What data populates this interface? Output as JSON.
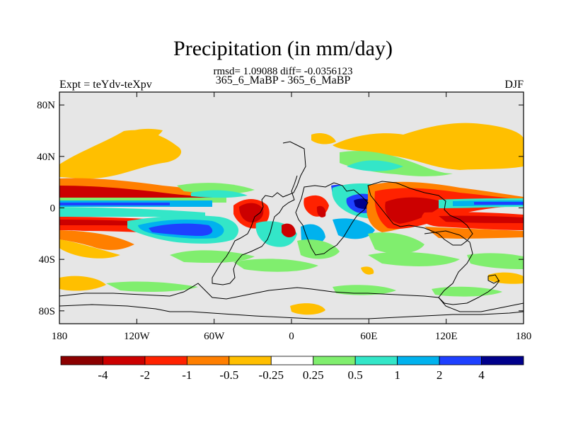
{
  "title": "Precipitation (in mm/day)",
  "stats_line": "rmsd= 1.09088 diff= -0.0356123",
  "subtitle": "365_6_MaBP - 365_6_MaBP",
  "left_label": "Expt = teYdv-teXpv",
  "right_label": "DJF",
  "map": {
    "type": "filled-contour",
    "lon_range": [
      -180,
      180
    ],
    "lat_range": [
      -90,
      90
    ],
    "lon_ticks": [
      {
        "value": -180,
        "label": "180"
      },
      {
        "value": -120,
        "label": "120W"
      },
      {
        "value": -60,
        "label": "60W"
      },
      {
        "value": 0,
        "label": "0"
      },
      {
        "value": 60,
        "label": "60E"
      },
      {
        "value": 120,
        "label": "120E"
      },
      {
        "value": 180,
        "label": "180"
      }
    ],
    "lat_ticks": [
      {
        "value": 80,
        "label": "80N"
      },
      {
        "value": 40,
        "label": "40N"
      },
      {
        "value": 0,
        "label": "0"
      },
      {
        "value": -40,
        "label": "40S"
      },
      {
        "value": -80,
        "label": "80S"
      }
    ],
    "background_color": "#e6e6e6"
  },
  "colorbar": {
    "colors": [
      "#8b0000",
      "#cc0000",
      "#ff2200",
      "#ff7f00",
      "#ffbf00",
      "#ffffff",
      "#80ee6e",
      "#33e6c8",
      "#00b2ee",
      "#1e40ff",
      "#00008b"
    ],
    "labels": [
      "-4",
      "-2",
      "-1",
      "-0.5",
      "-0.25",
      "0.25",
      "0.5",
      "1",
      "2",
      "4"
    ]
  }
}
